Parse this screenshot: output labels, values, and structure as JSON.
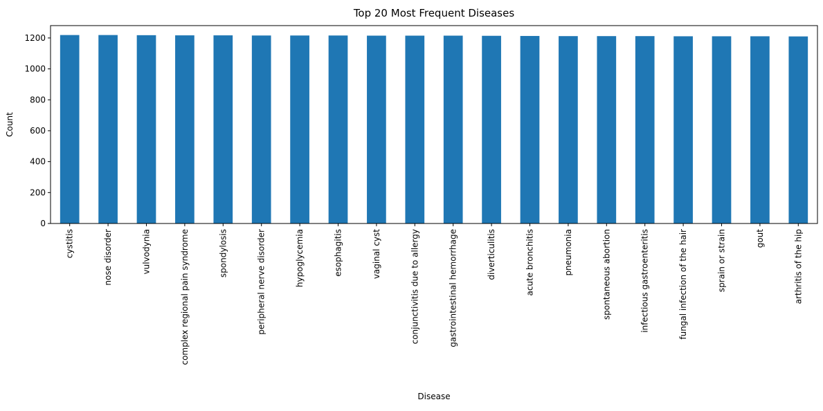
{
  "colors": {
    "bar": "#1f77b4",
    "axis": "#000000",
    "background": "#ffffff"
  },
  "chart_data": {
    "type": "bar",
    "title": "Top 20 Most Frequent Diseases",
    "xlabel": "Disease",
    "ylabel": "Count",
    "ylim": [
      0,
      1280
    ],
    "yticks": [
      0,
      200,
      400,
      600,
      800,
      1000,
      1200
    ],
    "grid": false,
    "legend": "none",
    "categories": [
      "cystitis",
      "nose disorder",
      "vulvodynia",
      "complex regional pain syndrome",
      "spondylosis",
      "peripheral nerve disorder",
      "hypoglycemia",
      "esophagitis",
      "vaginal cyst",
      "conjunctivitis due to allergy",
      "gastrointestinal hemorrhage",
      "diverticulitis",
      "acute bronchitis",
      "pneumonia",
      "spontaneous abortion",
      "infectious gastroenteritis",
      "fungal infection of the hair",
      "sprain or strain",
      "gout",
      "arthritis of the hip"
    ],
    "values": [
      1219,
      1219,
      1218,
      1217,
      1217,
      1216,
      1216,
      1216,
      1215,
      1215,
      1215,
      1214,
      1213,
      1212,
      1212,
      1212,
      1211,
      1211,
      1211,
      1210
    ]
  }
}
